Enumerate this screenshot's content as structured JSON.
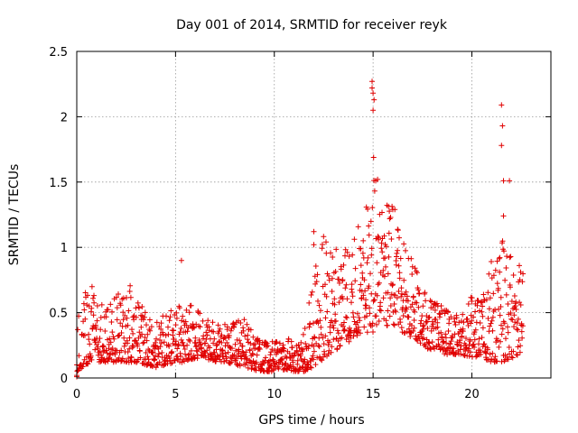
{
  "chart_data": {
    "type": "scatter",
    "title": "Day 001 of 2014, SRMTID for receiver reyk",
    "xlabel": "GPS time / hours",
    "ylabel": "SRMTID / TECUs",
    "xlim": [
      0,
      24
    ],
    "ylim": [
      0,
      2.5
    ],
    "x_ticks": [
      0,
      5,
      10,
      15,
      20
    ],
    "x_tick_labels": [
      "0",
      "5",
      "10",
      "15",
      "20"
    ],
    "y_ticks": [
      0,
      0.5,
      1,
      1.5,
      2,
      2.5
    ],
    "y_tick_labels": [
      "0",
      "0.5",
      "1",
      "1.5",
      "2",
      "2.5"
    ],
    "grid": true,
    "marker": "plus",
    "color": "#e00000",
    "series": [
      {
        "name": "SRMTID",
        "envelope_x": [
          0,
          0.5,
          1,
          1.5,
          2,
          2.5,
          3,
          3.5,
          4,
          4.5,
          5,
          5.5,
          6,
          6.5,
          7,
          7.5,
          8,
          8.5,
          9,
          9.5,
          10,
          10.5,
          11,
          11.5,
          12,
          12.5,
          13,
          13.5,
          14,
          14.5,
          15,
          15.5,
          16,
          16.5,
          17,
          17.5,
          18,
          18.5,
          19,
          19.5,
          20,
          20.5,
          21,
          21.5,
          22,
          22.6
        ],
        "envelope_low": [
          0.05,
          0.1,
          0.12,
          0.12,
          0.12,
          0.12,
          0.12,
          0.1,
          0.08,
          0.1,
          0.12,
          0.12,
          0.15,
          0.15,
          0.12,
          0.12,
          0.1,
          0.08,
          0.06,
          0.05,
          0.05,
          0.06,
          0.05,
          0.05,
          0.08,
          0.15,
          0.2,
          0.25,
          0.3,
          0.35,
          0.35,
          0.4,
          0.4,
          0.35,
          0.3,
          0.25,
          0.2,
          0.18,
          0.18,
          0.18,
          0.15,
          0.15,
          0.12,
          0.12,
          0.15,
          0.2
        ],
        "envelope_high": [
          0.45,
          0.8,
          0.7,
          0.6,
          0.65,
          0.7,
          0.75,
          0.55,
          0.42,
          0.5,
          0.55,
          0.55,
          0.62,
          0.45,
          0.42,
          0.42,
          0.45,
          0.48,
          0.32,
          0.28,
          0.28,
          0.3,
          0.3,
          0.35,
          0.85,
          1.1,
          1.0,
          0.95,
          1.15,
          1.25,
          1.75,
          1.4,
          1.35,
          1.2,
          0.9,
          0.7,
          0.6,
          0.55,
          0.5,
          0.55,
          0.65,
          0.7,
          0.9,
          1.1,
          1.0,
          0.8
        ],
        "annotated_peaks": [
          {
            "x": 5.3,
            "y": 0.9
          },
          {
            "x": 14.95,
            "y": 2.27
          },
          {
            "x": 14.95,
            "y": 2.22
          },
          {
            "x": 15.0,
            "y": 2.18
          },
          {
            "x": 15.05,
            "y": 2.13
          },
          {
            "x": 15.0,
            "y": 2.05
          },
          {
            "x": 21.5,
            "y": 2.09
          },
          {
            "x": 21.55,
            "y": 1.93
          },
          {
            "x": 21.5,
            "y": 1.78
          },
          {
            "x": 21.6,
            "y": 1.51
          },
          {
            "x": 21.9,
            "y": 1.51
          },
          {
            "x": 21.6,
            "y": 1.24
          },
          {
            "x": 12.0,
            "y": 1.12
          },
          {
            "x": 12.0,
            "y": 1.02
          }
        ],
        "point_count": 1500,
        "seed": 20140101
      }
    ]
  }
}
